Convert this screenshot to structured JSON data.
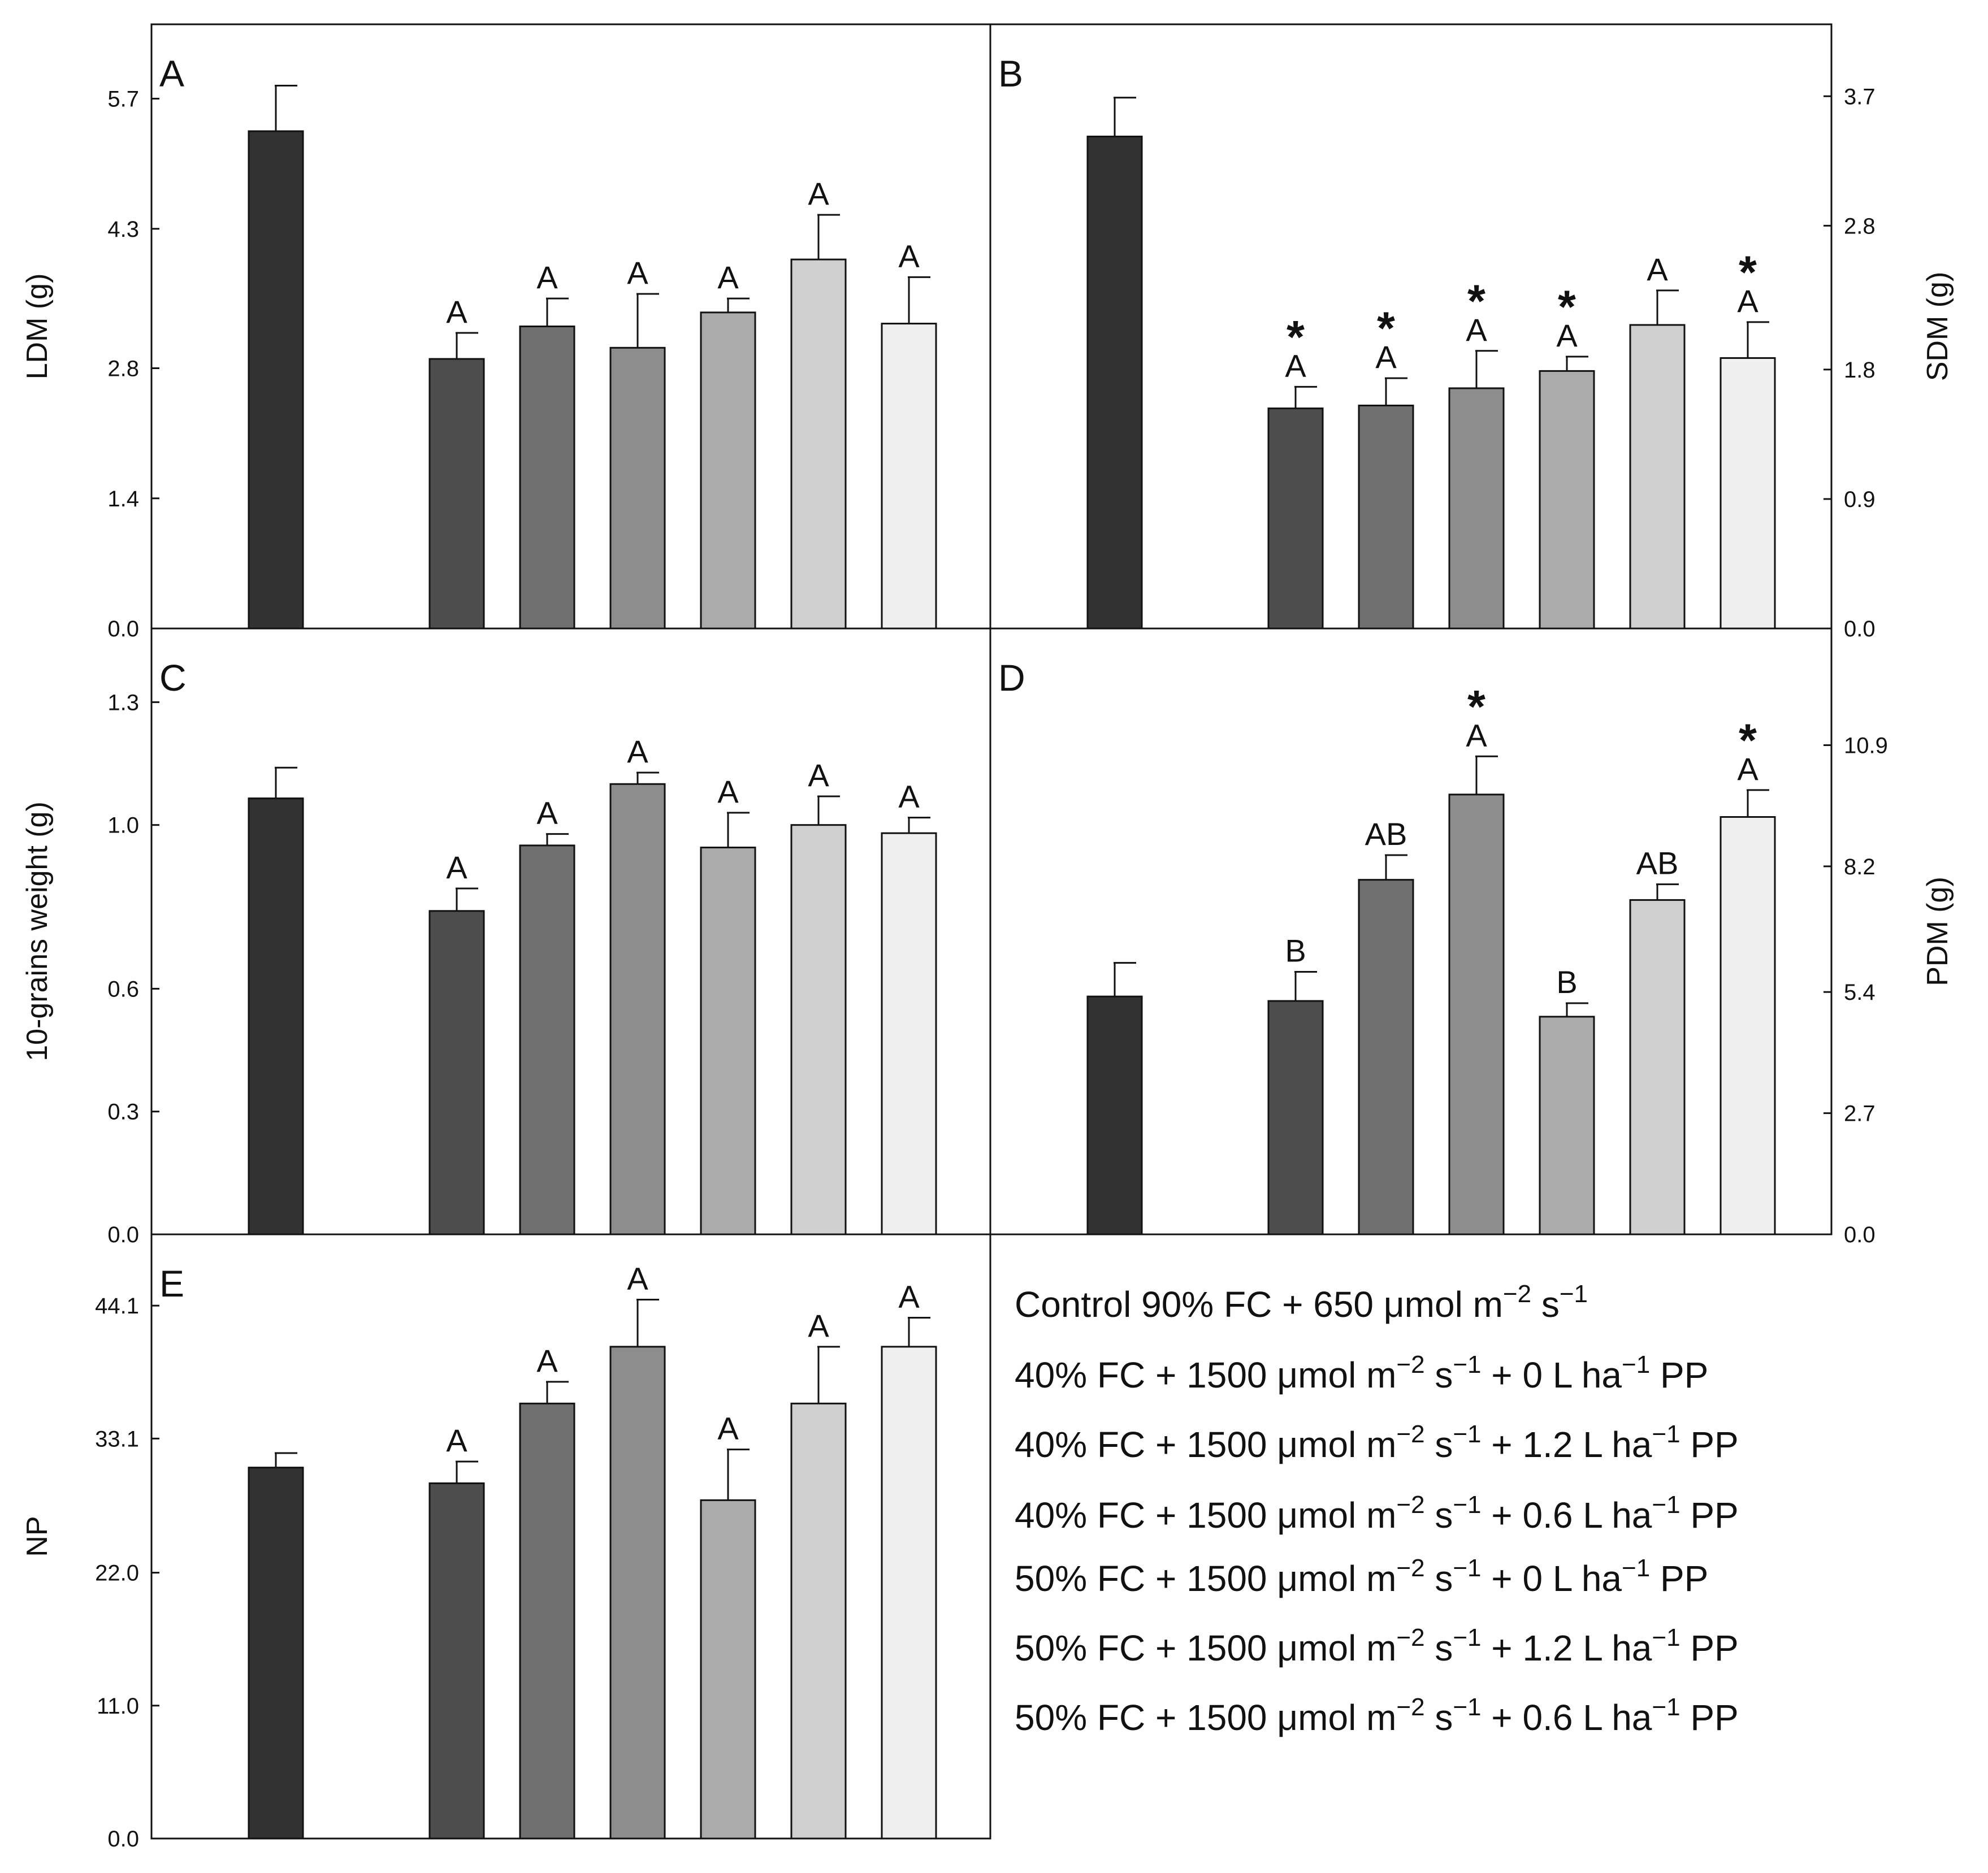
{
  "colors": {
    "bars": [
      "#323232",
      "#4d4d4d",
      "#6f6f6f",
      "#8d8d8d",
      "#ababab",
      "#cfcfcf",
      "#efefef"
    ],
    "axis": "#111111"
  },
  "legend": [
    {
      "base": "Control 90% FC + 650 μmol ",
      "unit1": "m",
      "sup1": "−2",
      "unit2": " s",
      "sup2": "−1",
      "rest": ""
    },
    {
      "base": "40% FC + 1500 μmol ",
      "unit1": "m",
      "sup1": "−2",
      "unit2": " s",
      "sup2": "−1",
      "rest": " + 0 L ha",
      "sup3": "−1",
      "tail": " PP"
    },
    {
      "base": "40% FC + 1500 μmol ",
      "unit1": "m",
      "sup1": "−2",
      "unit2": " s",
      "sup2": "−1",
      "rest": " + 1.2 L ha",
      "sup3": "−1",
      "tail": " PP"
    },
    {
      "base": "40% FC + 1500 μmol ",
      "unit1": "m",
      "sup1": "−2",
      "unit2": " s",
      "sup2": "−1",
      "rest": " + 0.6 L ha",
      "sup3": "−1",
      "tail": " PP"
    },
    {
      "base": "50% FC + 1500 μmol ",
      "unit1": "m",
      "sup1": "−2",
      "unit2": " s",
      "sup2": "−1",
      "rest": " + 0 L ha",
      "sup3": "−1",
      "tail": " PP"
    },
    {
      "base": "50% FC + 1500 μmol ",
      "unit1": "m",
      "sup1": "−2",
      "unit2": " s",
      "sup2": "−1",
      "rest": " + 1.2 L ha",
      "sup3": "−1",
      "tail": " PP"
    },
    {
      "base": "50% FC + 1500 μmol ",
      "unit1": "m",
      "sup1": "−2",
      "unit2": " s",
      "sup2": "−1",
      "rest": " + 0.6 L ha",
      "sup3": "−1",
      "tail": " PP"
    }
  ],
  "chart_data": [
    {
      "panel": "A",
      "type": "bar",
      "ylabel": "LDM (g)",
      "yaxis_side": "left",
      "ylim": [
        0,
        6.5
      ],
      "yticks": [
        "0.0",
        "1.4",
        "2.8",
        "4.3",
        "5.7"
      ],
      "categories": [
        "Control 90% FC + 650",
        "40% FC + 0 PP",
        "40% FC + 1.2 PP",
        "40% FC + 0.6 PP",
        "50% FC + 0 PP",
        "50% FC + 1.2 PP",
        "50% FC + 0.6 PP"
      ],
      "values": [
        5.35,
        2.9,
        3.25,
        3.02,
        3.4,
        3.97,
        3.28
      ],
      "errors": [
        0.49,
        0.28,
        0.3,
        0.58,
        0.15,
        0.48,
        0.5
      ],
      "letters": [
        "",
        "A",
        "A",
        "A",
        "A",
        "A",
        "A"
      ],
      "stars": [
        "",
        "",
        "",
        "",
        "",
        "",
        ""
      ]
    },
    {
      "panel": "B",
      "type": "bar",
      "ylabel": "SDM (g)",
      "yaxis_side": "right",
      "ylim": [
        0,
        4.2
      ],
      "yticks": [
        "0.0",
        "0.9",
        "1.8",
        "2.8",
        "3.7"
      ],
      "categories": [
        "Control 90% FC + 650",
        "40% FC + 0 PP",
        "40% FC + 1.2 PP",
        "40% FC + 0.6 PP",
        "50% FC + 0 PP",
        "50% FC + 1.2 PP",
        "50% FC + 0.6 PP"
      ],
      "values": [
        3.42,
        1.53,
        1.55,
        1.67,
        1.79,
        2.11,
        1.88
      ],
      "errors": [
        0.27,
        0.15,
        0.19,
        0.26,
        0.1,
        0.24,
        0.25
      ],
      "letters": [
        "",
        "A",
        "A",
        "A",
        "A",
        "A",
        "A"
      ],
      "stars": [
        "",
        "*",
        "*",
        "*",
        "*",
        "",
        "*"
      ]
    },
    {
      "panel": "C",
      "type": "bar",
      "ylabel": "10-grains weight (g)",
      "yaxis_side": "left",
      "ylim": [
        0,
        1.48
      ],
      "yticks": [
        "0.0",
        "0.3",
        "0.6",
        "1.0",
        "1.3"
      ],
      "categories": [
        "Control 90% FC + 650",
        "40% FC + 0 PP",
        "40% FC + 1.2 PP",
        "40% FC + 0.6 PP",
        "50% FC + 0 PP",
        "50% FC + 1.2 PP",
        "50% FC + 0.6 PP"
      ],
      "values": [
        1.065,
        0.79,
        0.95,
        1.1,
        0.945,
        1.0,
        0.98
      ],
      "errors": [
        0.075,
        0.055,
        0.028,
        0.028,
        0.085,
        0.07,
        0.038
      ],
      "letters": [
        "",
        "A",
        "A",
        "A",
        "A",
        "A",
        "A"
      ],
      "stars": [
        "",
        "",
        "",
        "",
        "",
        "",
        ""
      ]
    },
    {
      "panel": "D",
      "type": "bar",
      "ylabel": "PDM (g)",
      "yaxis_side": "right",
      "ylim": [
        0,
        13.5
      ],
      "yticks": [
        "0.0",
        "2.7",
        "5.4",
        "8.2",
        "10.9"
      ],
      "categories": [
        "Control 90% FC + 650",
        "40% FC + 0 PP",
        "40% FC + 1.2 PP",
        "40% FC + 0.6 PP",
        "50% FC + 0 PP",
        "50% FC + 1.2 PP",
        "50% FC + 0.6 PP"
      ],
      "values": [
        5.3,
        5.2,
        7.9,
        9.8,
        4.85,
        7.45,
        9.3
      ],
      "errors": [
        0.75,
        0.65,
        0.55,
        0.85,
        0.3,
        0.35,
        0.6
      ],
      "letters": [
        "",
        "B",
        "AB",
        "A",
        "B",
        "AB",
        "A"
      ],
      "stars": [
        "",
        "",
        "",
        "*",
        "",
        "",
        "*"
      ]
    },
    {
      "panel": "E",
      "type": "bar",
      "ylabel": "NP",
      "yaxis_side": "left",
      "ylim": [
        0,
        50
      ],
      "yticks": [
        "0.0",
        "11.0",
        "22.0",
        "33.1",
        "44.1"
      ],
      "categories": [
        "Control 90% FC + 650",
        "40% FC + 0 PP",
        "40% FC + 1.2 PP",
        "40% FC + 0.6 PP",
        "50% FC + 0 PP",
        "50% FC + 1.2 PP",
        "50% FC + 0.6 PP"
      ],
      "values": [
        30.7,
        29.4,
        36.0,
        40.7,
        28.0,
        36.0,
        40.7
      ],
      "errors": [
        1.2,
        1.8,
        1.8,
        3.9,
        4.2,
        4.7,
        2.4
      ],
      "letters": [
        "",
        "A",
        "A",
        "A",
        "A",
        "A",
        "A"
      ],
      "stars": [
        "",
        "",
        "",
        "",
        "",
        "",
        ""
      ]
    }
  ]
}
